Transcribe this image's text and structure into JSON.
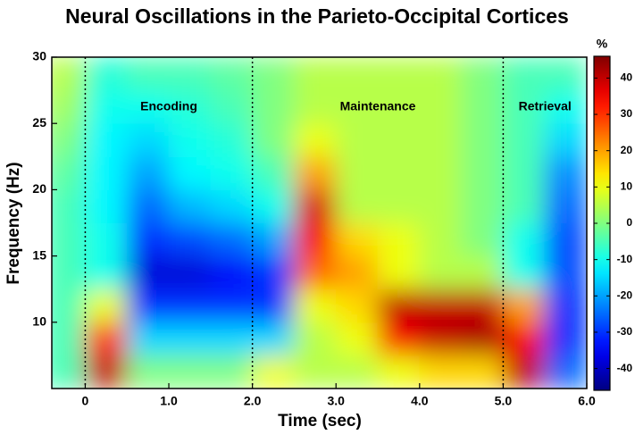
{
  "chart_data": {
    "type": "heatmap",
    "title": "Neural Oscillations in the Parieto-Occipital Cortices",
    "x_label": "Time (sec)",
    "y_label": "Frequency (Hz)",
    "colorbar_label": "%",
    "x": [
      -0.25,
      0.25,
      0.75,
      1.25,
      1.75,
      2.25,
      2.75,
      3.25,
      3.75,
      4.25,
      4.75,
      5.25,
      5.75
    ],
    "y": [
      6.25,
      8.75,
      11.25,
      13.75,
      16.25,
      18.75,
      21.25,
      23.75,
      26.25,
      28.75
    ],
    "z": [
      [
        -5,
        40,
        0,
        0,
        0,
        10,
        5,
        5,
        10,
        15,
        15,
        40,
        -25
      ],
      [
        -5,
        30,
        -15,
        -15,
        -15,
        -15,
        5,
        10,
        35,
        40,
        42,
        35,
        -30
      ],
      [
        -5,
        10,
        -30,
        -30,
        -30,
        -30,
        10,
        15,
        40,
        40,
        40,
        20,
        -30
      ],
      [
        -5,
        -10,
        -38,
        -38,
        -35,
        -30,
        25,
        20,
        10,
        5,
        5,
        -10,
        -28
      ],
      [
        -5,
        -10,
        -30,
        -28,
        -25,
        -20,
        35,
        15,
        10,
        5,
        0,
        -10,
        -28
      ],
      [
        -5,
        -12,
        -25,
        -18,
        -15,
        -10,
        38,
        5,
        5,
        5,
        0,
        -5,
        -25
      ],
      [
        -3,
        -12,
        -20,
        -12,
        -10,
        -5,
        20,
        5,
        5,
        5,
        0,
        -5,
        -22
      ],
      [
        0,
        -12,
        -15,
        -10,
        -8,
        0,
        10,
        5,
        5,
        5,
        0,
        -5,
        -15
      ],
      [
        3,
        -10,
        -10,
        -8,
        -5,
        0,
        5,
        5,
        5,
        5,
        0,
        -5,
        -10
      ],
      [
        5,
        -8,
        -5,
        -5,
        -3,
        0,
        5,
        5,
        5,
        5,
        0,
        -5,
        -5
      ]
    ],
    "xlim": [
      -0.4,
      6.0
    ],
    "ylim": [
      5,
      30
    ],
    "clim": [
      -46,
      46
    ],
    "xticks": [
      0,
      {
        "value": 1,
        "label": "1.0"
      },
      {
        "value": 2,
        "label": "2.0"
      },
      {
        "value": 3,
        "label": "3.0"
      },
      {
        "value": 4,
        "label": "4.0"
      },
      {
        "value": 5,
        "label": "5.0"
      },
      {
        "value": 6,
        "label": "6.0"
      }
    ],
    "yticks": [
      10,
      15,
      20,
      25,
      30
    ],
    "cticks": [
      -40,
      -30,
      -20,
      -10,
      0,
      10,
      20,
      30,
      40
    ],
    "phases": [
      {
        "label": "Encoding",
        "start": 0,
        "end": 2
      },
      {
        "label": "Maintenance",
        "start": 2,
        "end": 5
      },
      {
        "label": "Retrieval",
        "start": 5,
        "end": 6
      }
    ],
    "colormap": "jet"
  }
}
